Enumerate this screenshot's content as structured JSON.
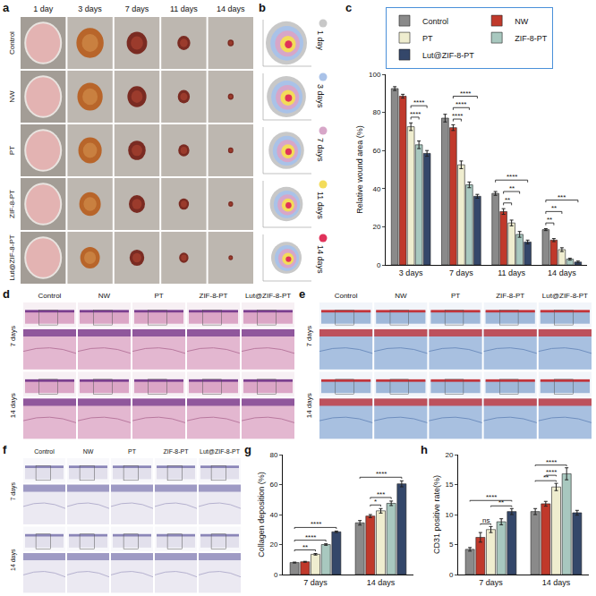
{
  "figure": {
    "a": {
      "panel": "a",
      "columns": [
        "1 day",
        "3 days",
        "7 days",
        "11 days",
        "14 days"
      ],
      "rows": [
        "Control",
        "NW",
        "PT",
        "ZIF-8-PT",
        "Lut@ZIF-8-PT"
      ]
    },
    "b": {
      "panel": "b",
      "legend": [
        "1 day",
        "3 days",
        "7 days",
        "11 days",
        "14 days"
      ],
      "colors": [
        "#c8c8c8",
        "#a9c2e8",
        "#d7a6c8",
        "#f3dc5a",
        "#e0325a"
      ]
    },
    "d": {
      "panel": "d",
      "columns": [
        "Control",
        "NW",
        "PT",
        "ZIF-8-PT",
        "Lut@ZIF-8-PT"
      ],
      "rows": [
        "7 days",
        "14 days"
      ]
    },
    "e": {
      "panel": "e",
      "columns": [
        "Control",
        "NW",
        "PT",
        "ZIF-8-PT",
        "Lut@ZIF-8-PT"
      ],
      "rows": [
        "7 days",
        "14 days"
      ]
    },
    "f": {
      "panel": "f",
      "columns": [
        "Control",
        "NW",
        "PT",
        "ZIF-8-PT",
        "Lut@ZIF-8-PT"
      ],
      "rows": [
        "7 days",
        "14 days"
      ]
    }
  },
  "chart_data": [
    {
      "panel": "c",
      "type": "bar",
      "ylabel": "Relative wound area (%)",
      "legend": "top",
      "grid": false,
      "categories": [
        "3 days",
        "7 days",
        "11 days",
        "14 days"
      ],
      "ylim": [
        0,
        100
      ],
      "yticks": [
        0,
        20,
        40,
        60,
        80,
        100
      ],
      "series": [
        {
          "name": "Control",
          "color": "#8a8a8a",
          "values": [
            92.5,
            77,
            37.5,
            18.5
          ],
          "errors": [
            1,
            2,
            1,
            0.5
          ]
        },
        {
          "name": "NW",
          "color": "#c0392b",
          "values": [
            88.5,
            72,
            28,
            13
          ],
          "errors": [
            1,
            1.5,
            1.5,
            0.8
          ]
        },
        {
          "name": "PT",
          "color": "#efedcf",
          "values": [
            72.5,
            52.5,
            22,
            8
          ],
          "errors": [
            2,
            2,
            1.5,
            1
          ]
        },
        {
          "name": "ZIF-8-PT",
          "color": "#a8c8bf",
          "values": [
            63,
            42,
            16,
            3
          ],
          "errors": [
            2,
            1.5,
            1.5,
            0.5
          ]
        },
        {
          "name": "Lut@ZIF-8-PT",
          "color": "#34476a",
          "values": [
            58.5,
            36,
            12,
            1.5
          ],
          "errors": [
            1.5,
            1,
            1,
            0.5
          ]
        }
      ],
      "significance": [
        {
          "category": "3 days",
          "from": "PT",
          "to": "ZIF-8-PT",
          "label": "****"
        },
        {
          "category": "3 days",
          "from": "PT",
          "to": "Lut@ZIF-8-PT",
          "label": "****"
        },
        {
          "category": "7 days",
          "from": "NW",
          "to": "PT",
          "label": "****"
        },
        {
          "category": "7 days",
          "from": "NW",
          "to": "ZIF-8-PT",
          "label": "****"
        },
        {
          "category": "7 days",
          "from": "NW",
          "to": "Lut@ZIF-8-PT",
          "label": "****"
        },
        {
          "category": "11 days",
          "from": "NW",
          "to": "PT",
          "label": "**"
        },
        {
          "category": "11 days",
          "from": "NW",
          "to": "ZIF-8-PT",
          "label": "**"
        },
        {
          "category": "11 days",
          "from": "Control",
          "to": "Lut@ZIF-8-PT",
          "label": "****"
        },
        {
          "category": "14 days",
          "from": "Control",
          "to": "NW",
          "label": "**"
        },
        {
          "category": "14 days",
          "from": "Control",
          "to": "PT",
          "label": "**"
        },
        {
          "category": "14 days",
          "from": "Control",
          "to": "Lut@ZIF-8-PT",
          "label": "***"
        }
      ]
    },
    {
      "panel": "g",
      "type": "bar",
      "ylabel": "Collagen deposition (%)",
      "grid": false,
      "categories": [
        "7 days",
        "14 days"
      ],
      "ylim": [
        0,
        80
      ],
      "yticks": [
        0,
        20,
        40,
        60,
        80
      ],
      "series": [
        {
          "name": "Control",
          "color": "#8a8a8a",
          "values": [
            8,
            34.5
          ],
          "errors": [
            0.3,
            1.5
          ]
        },
        {
          "name": "NW",
          "color": "#c0392b",
          "values": [
            8.5,
            39
          ],
          "errors": [
            0.3,
            1
          ]
        },
        {
          "name": "PT",
          "color": "#efedcf",
          "values": [
            13.5,
            42.5
          ],
          "errors": [
            0.5,
            1.5
          ]
        },
        {
          "name": "ZIF-8-PT",
          "color": "#a8c8bf",
          "values": [
            20,
            47.5
          ],
          "errors": [
            0.5,
            1.5
          ]
        },
        {
          "name": "Lut@ZIF-8-PT",
          "color": "#34476a",
          "values": [
            28.5,
            60.5
          ],
          "errors": [
            0.5,
            2
          ]
        }
      ],
      "significance": [
        {
          "category": "7 days",
          "from": "Control",
          "to": "PT",
          "label": "**"
        },
        {
          "category": "7 days",
          "from": "Control",
          "to": "ZIF-8-PT",
          "label": "****"
        },
        {
          "category": "7 days",
          "from": "Control",
          "to": "Lut@ZIF-8-PT",
          "label": "****"
        },
        {
          "category": "14 days",
          "from": "NW",
          "to": "PT",
          "label": "*"
        },
        {
          "category": "14 days",
          "from": "NW",
          "to": "ZIF-8-PT",
          "label": "***"
        },
        {
          "category": "14 days",
          "from": "Control",
          "to": "Lut@ZIF-8-PT",
          "label": "****"
        }
      ]
    },
    {
      "panel": "h",
      "type": "bar",
      "ylabel": "CD31 positive rate(%)",
      "grid": false,
      "categories": [
        "7 days",
        "14 days"
      ],
      "ylim": [
        0,
        20
      ],
      "yticks": [
        0,
        5,
        10,
        15,
        20
      ],
      "series": [
        {
          "name": "Control",
          "color": "#8a8a8a",
          "values": [
            4.2,
            10.5
          ],
          "errors": [
            0.3,
            0.5
          ]
        },
        {
          "name": "NW",
          "color": "#c0392b",
          "values": [
            6.2,
            11.8
          ],
          "errors": [
            0.8,
            0.4
          ]
        },
        {
          "name": "PT",
          "color": "#efedcf",
          "values": [
            7.5,
            14.6
          ],
          "errors": [
            0.5,
            0.6
          ]
        },
        {
          "name": "ZIF-8-PT",
          "color": "#a8c8bf",
          "values": [
            8.8,
            16.8
          ],
          "errors": [
            0.5,
            1
          ]
        },
        {
          "name": "Lut@ZIF-8-PT",
          "color": "#34476a",
          "values": [
            10.5,
            10.3
          ],
          "errors": [
            0.5,
            0.4
          ]
        }
      ],
      "significance": [
        {
          "category": "7 days",
          "from": "NW",
          "to": "PT",
          "label": "ns"
        },
        {
          "category": "7 days",
          "from": "PT",
          "to": "Lut@ZIF-8-PT",
          "label": "**"
        },
        {
          "category": "7 days",
          "from": "Control",
          "to": "Lut@ZIF-8-PT",
          "label": "****"
        },
        {
          "category": "14 days",
          "from": "Control",
          "to": "PT",
          "label": "**"
        },
        {
          "category": "14 days",
          "from": "NW",
          "to": "PT",
          "label": "****"
        },
        {
          "category": "14 days",
          "from": "Control",
          "to": "ZIF-8-PT",
          "label": "****"
        }
      ]
    }
  ]
}
